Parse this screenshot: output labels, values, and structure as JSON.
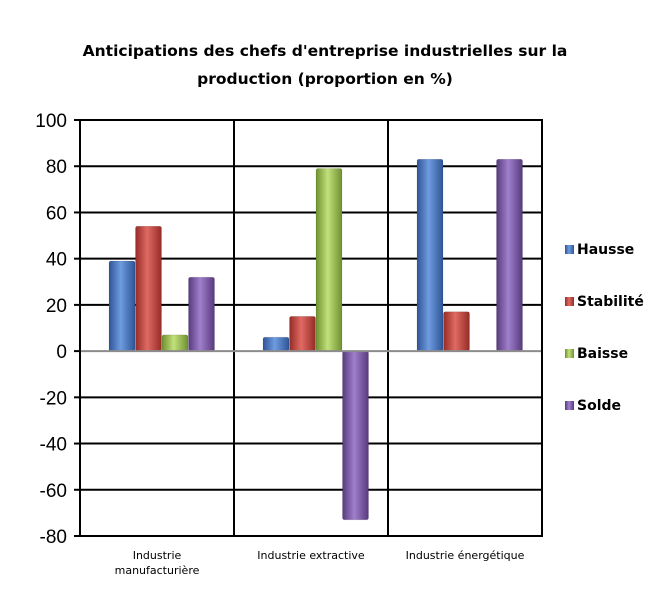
{
  "chart_data": {
    "type": "bar",
    "title_lines": [
      "Anticipations des chefs d'entreprise industrielles sur la",
      "production  (proportion en %)"
    ],
    "categories": [
      [
        "Industrie",
        "manufacturière"
      ],
      [
        "Industrie extractive"
      ],
      [
        "Industrie énergétique"
      ]
    ],
    "series": [
      {
        "name": "Hausse",
        "color": "#4A7CC7",
        "values": [
          39,
          6,
          83
        ]
      },
      {
        "name": "Stabilité",
        "color": "#C94640",
        "values": [
          54,
          15,
          17
        ]
      },
      {
        "name": "Baisse",
        "color": "#9BC24E",
        "values": [
          7,
          79,
          0
        ]
      },
      {
        "name": "Solde",
        "color": "#7E58A6",
        "values": [
          32,
          -73,
          83
        ]
      }
    ],
    "ylim": [
      -80,
      100
    ],
    "yticks": [
      "100",
      "80",
      "60",
      "40",
      "20",
      "0",
      "-20",
      "-40",
      "-60",
      "-80"
    ],
    "grid": true,
    "legend_position": "right"
  }
}
